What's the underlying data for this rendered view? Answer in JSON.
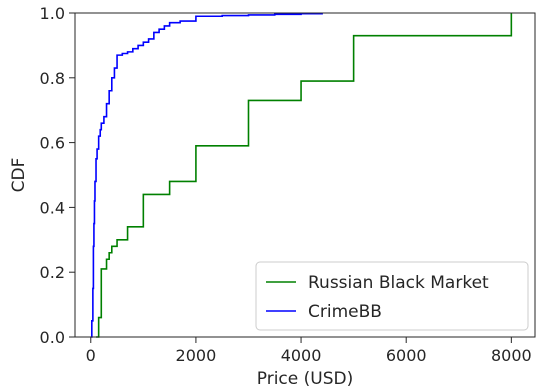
{
  "chart_data": {
    "type": "line",
    "title": "",
    "xlabel": "Price (USD)",
    "ylabel": "CDF",
    "xlim": [
      -300,
      8450
    ],
    "ylim": [
      0,
      1
    ],
    "x_ticks": [
      0,
      2000,
      4000,
      6000,
      8000
    ],
    "x_tick_labels": [
      "0",
      "2000",
      "4000",
      "6000",
      "8000"
    ],
    "y_ticks": [
      0,
      0.2,
      0.4,
      0.6,
      0.8,
      1.0
    ],
    "y_tick_labels": [
      "0.0",
      "0.2",
      "0.4",
      "0.6",
      "0.8",
      "1.0"
    ],
    "grid": false,
    "legend_position": "bottom-right",
    "series": [
      {
        "name": "Russian Black Market",
        "color": "#008000",
        "step": true,
        "x": [
          100,
          150,
          200,
          300,
          350,
          400,
          500,
          700,
          1000,
          1500,
          2000,
          3000,
          4000,
          5000,
          8000
        ],
        "y": [
          0.0,
          0.06,
          0.21,
          0.24,
          0.26,
          0.28,
          0.3,
          0.34,
          0.44,
          0.48,
          0.59,
          0.73,
          0.79,
          0.93,
          1.0
        ]
      },
      {
        "name": "CrimeBB",
        "color": "#0000ff",
        "step": true,
        "x": [
          0,
          20,
          40,
          50,
          60,
          70,
          80,
          100,
          120,
          150,
          180,
          200,
          250,
          300,
          350,
          400,
          450,
          500,
          600,
          700,
          800,
          900,
          1000,
          1100,
          1200,
          1300,
          1400,
          1500,
          1700,
          2000,
          2500,
          3000,
          3500,
          4000,
          4400
        ],
        "y": [
          0.0,
          0.05,
          0.15,
          0.28,
          0.35,
          0.42,
          0.48,
          0.55,
          0.58,
          0.62,
          0.64,
          0.66,
          0.68,
          0.72,
          0.76,
          0.8,
          0.83,
          0.87,
          0.875,
          0.88,
          0.89,
          0.9,
          0.91,
          0.92,
          0.94,
          0.95,
          0.96,
          0.97,
          0.975,
          0.99,
          0.992,
          0.994,
          0.996,
          0.998,
          1.0
        ]
      }
    ]
  }
}
